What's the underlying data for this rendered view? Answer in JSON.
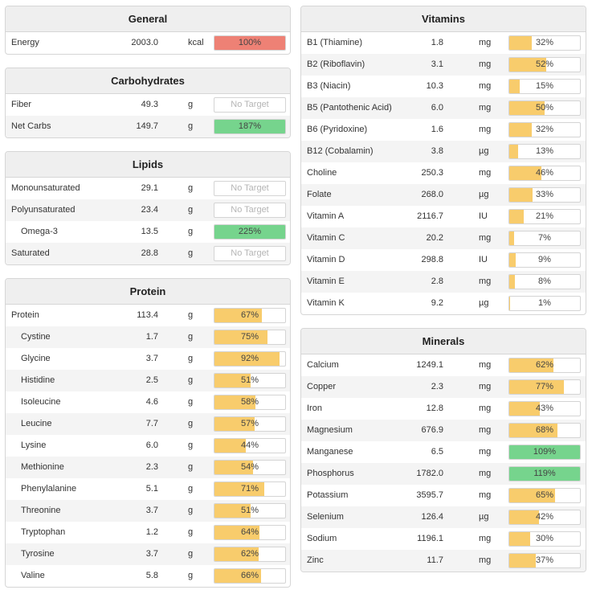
{
  "panels": [
    {
      "id": "general",
      "title": "General",
      "rows": [
        {
          "label": "Energy",
          "value": "2003.0",
          "unit": "kcal",
          "pct_text": "100%",
          "pct": 100,
          "status": "over"
        }
      ]
    },
    {
      "id": "carbohydrates",
      "title": "Carbohydrates",
      "rows": [
        {
          "label": "Fiber",
          "value": "49.3",
          "unit": "g",
          "pct_text": "No Target",
          "pct": 0,
          "status": "none"
        },
        {
          "label": "Net Carbs",
          "value": "149.7",
          "unit": "g",
          "pct_text": "187%",
          "pct": 187,
          "status": "ok"
        }
      ]
    },
    {
      "id": "lipids",
      "title": "Lipids",
      "rows": [
        {
          "label": "Monounsaturated",
          "value": "29.1",
          "unit": "g",
          "pct_text": "No Target",
          "pct": 0,
          "status": "none"
        },
        {
          "label": "Polyunsaturated",
          "value": "23.4",
          "unit": "g",
          "pct_text": "No Target",
          "pct": 0,
          "status": "none"
        },
        {
          "label": "Omega-3",
          "value": "13.5",
          "unit": "g",
          "pct_text": "225%",
          "pct": 225,
          "status": "ok",
          "indent": true
        },
        {
          "label": "Saturated",
          "value": "28.8",
          "unit": "g",
          "pct_text": "No Target",
          "pct": 0,
          "status": "none"
        }
      ]
    },
    {
      "id": "protein",
      "title": "Protein",
      "rows": [
        {
          "label": "Protein",
          "value": "113.4",
          "unit": "g",
          "pct_text": "67%",
          "pct": 67,
          "status": "low"
        },
        {
          "label": "Cystine",
          "value": "1.7",
          "unit": "g",
          "pct_text": "75%",
          "pct": 75,
          "status": "low",
          "indent": true
        },
        {
          "label": "Glycine",
          "value": "3.7",
          "unit": "g",
          "pct_text": "92%",
          "pct": 92,
          "status": "low",
          "indent": true
        },
        {
          "label": "Histidine",
          "value": "2.5",
          "unit": "g",
          "pct_text": "51%",
          "pct": 51,
          "status": "low",
          "indent": true
        },
        {
          "label": "Isoleucine",
          "value": "4.6",
          "unit": "g",
          "pct_text": "58%",
          "pct": 58,
          "status": "low",
          "indent": true
        },
        {
          "label": "Leucine",
          "value": "7.7",
          "unit": "g",
          "pct_text": "57%",
          "pct": 57,
          "status": "low",
          "indent": true
        },
        {
          "label": "Lysine",
          "value": "6.0",
          "unit": "g",
          "pct_text": "44%",
          "pct": 44,
          "status": "low",
          "indent": true
        },
        {
          "label": "Methionine",
          "value": "2.3",
          "unit": "g",
          "pct_text": "54%",
          "pct": 54,
          "status": "low",
          "indent": true
        },
        {
          "label": "Phenylalanine",
          "value": "5.1",
          "unit": "g",
          "pct_text": "71%",
          "pct": 71,
          "status": "low",
          "indent": true
        },
        {
          "label": "Threonine",
          "value": "3.7",
          "unit": "g",
          "pct_text": "51%",
          "pct": 51,
          "status": "low",
          "indent": true
        },
        {
          "label": "Tryptophan",
          "value": "1.2",
          "unit": "g",
          "pct_text": "64%",
          "pct": 64,
          "status": "low",
          "indent": true
        },
        {
          "label": "Tyrosine",
          "value": "3.7",
          "unit": "g",
          "pct_text": "62%",
          "pct": 62,
          "status": "low",
          "indent": true
        },
        {
          "label": "Valine",
          "value": "5.8",
          "unit": "g",
          "pct_text": "66%",
          "pct": 66,
          "status": "low",
          "indent": true
        }
      ]
    },
    {
      "id": "vitamins",
      "title": "Vitamins",
      "rows": [
        {
          "label": "B1 (Thiamine)",
          "value": "1.8",
          "unit": "mg",
          "pct_text": "32%",
          "pct": 32,
          "status": "low"
        },
        {
          "label": "B2 (Riboflavin)",
          "value": "3.1",
          "unit": "mg",
          "pct_text": "52%",
          "pct": 52,
          "status": "low"
        },
        {
          "label": "B3 (Niacin)",
          "value": "10.3",
          "unit": "mg",
          "pct_text": "15%",
          "pct": 15,
          "status": "low"
        },
        {
          "label": "B5 (Pantothenic Acid)",
          "value": "6.0",
          "unit": "mg",
          "pct_text": "50%",
          "pct": 50,
          "status": "low"
        },
        {
          "label": "B6 (Pyridoxine)",
          "value": "1.6",
          "unit": "mg",
          "pct_text": "32%",
          "pct": 32,
          "status": "low"
        },
        {
          "label": "B12 (Cobalamin)",
          "value": "3.8",
          "unit": "µg",
          "pct_text": "13%",
          "pct": 13,
          "status": "low"
        },
        {
          "label": "Choline",
          "value": "250.3",
          "unit": "mg",
          "pct_text": "46%",
          "pct": 46,
          "status": "low"
        },
        {
          "label": "Folate",
          "value": "268.0",
          "unit": "µg",
          "pct_text": "33%",
          "pct": 33,
          "status": "low"
        },
        {
          "label": "Vitamin A",
          "value": "2116.7",
          "unit": "IU",
          "pct_text": "21%",
          "pct": 21,
          "status": "low"
        },
        {
          "label": "Vitamin C",
          "value": "20.2",
          "unit": "mg",
          "pct_text": "7%",
          "pct": 7,
          "status": "low"
        },
        {
          "label": "Vitamin D",
          "value": "298.8",
          "unit": "IU",
          "pct_text": "9%",
          "pct": 9,
          "status": "low"
        },
        {
          "label": "Vitamin E",
          "value": "2.8",
          "unit": "mg",
          "pct_text": "8%",
          "pct": 8,
          "status": "low"
        },
        {
          "label": "Vitamin K",
          "value": "9.2",
          "unit": "µg",
          "pct_text": "1%",
          "pct": 1,
          "status": "low"
        }
      ]
    },
    {
      "id": "minerals",
      "title": "Minerals",
      "rows": [
        {
          "label": "Calcium",
          "value": "1249.1",
          "unit": "mg",
          "pct_text": "62%",
          "pct": 62,
          "status": "low"
        },
        {
          "label": "Copper",
          "value": "2.3",
          "unit": "mg",
          "pct_text": "77%",
          "pct": 77,
          "status": "low"
        },
        {
          "label": "Iron",
          "value": "12.8",
          "unit": "mg",
          "pct_text": "43%",
          "pct": 43,
          "status": "low"
        },
        {
          "label": "Magnesium",
          "value": "676.9",
          "unit": "mg",
          "pct_text": "68%",
          "pct": 68,
          "status": "low"
        },
        {
          "label": "Manganese",
          "value": "6.5",
          "unit": "mg",
          "pct_text": "109%",
          "pct": 109,
          "status": "ok"
        },
        {
          "label": "Phosphorus",
          "value": "1782.0",
          "unit": "mg",
          "pct_text": "119%",
          "pct": 119,
          "status": "ok"
        },
        {
          "label": "Potassium",
          "value": "3595.7",
          "unit": "mg",
          "pct_text": "65%",
          "pct": 65,
          "status": "low"
        },
        {
          "label": "Selenium",
          "value": "126.4",
          "unit": "µg",
          "pct_text": "42%",
          "pct": 42,
          "status": "low"
        },
        {
          "label": "Sodium",
          "value": "1196.1",
          "unit": "mg",
          "pct_text": "30%",
          "pct": 30,
          "status": "low"
        },
        {
          "label": "Zinc",
          "value": "11.7",
          "unit": "mg",
          "pct_text": "37%",
          "pct": 37,
          "status": "low"
        }
      ]
    }
  ]
}
